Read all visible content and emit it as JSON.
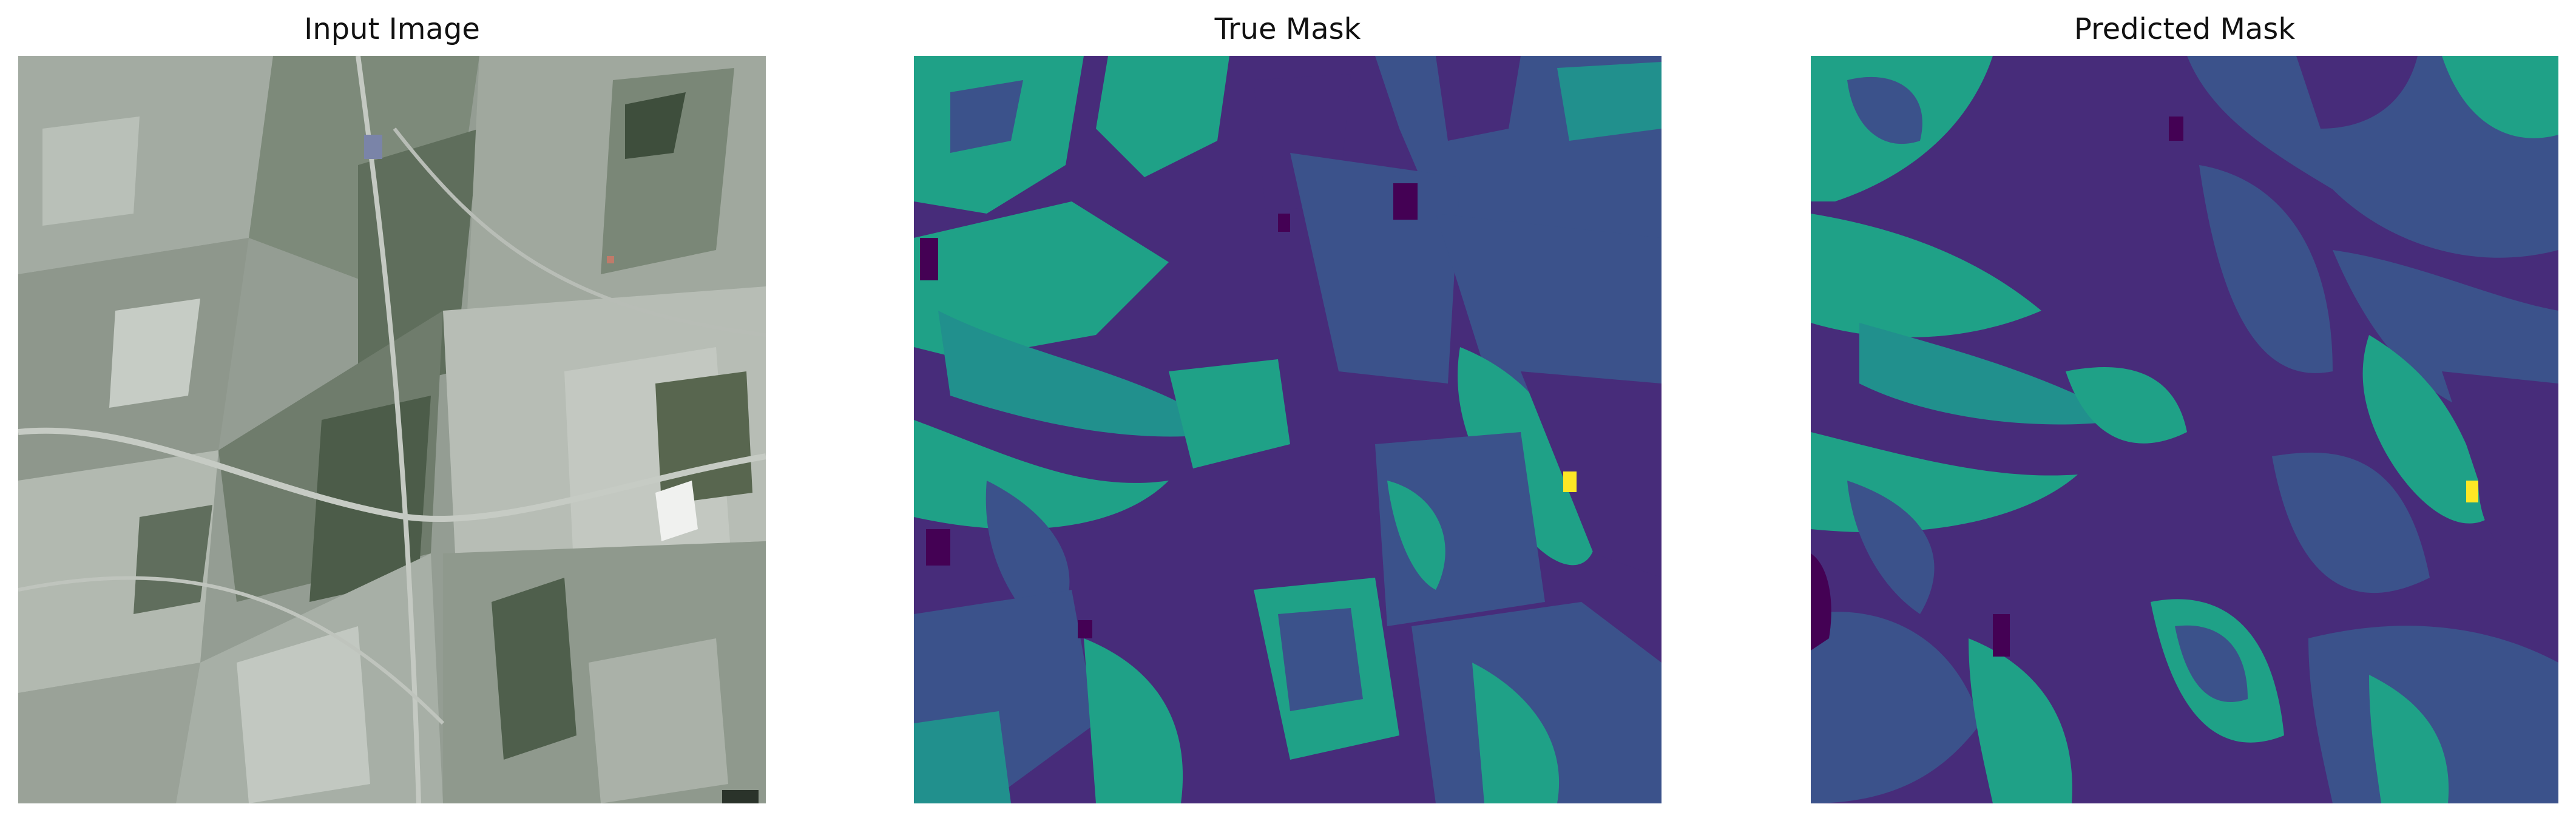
{
  "figure": {
    "panels": [
      {
        "title": "Input Image"
      },
      {
        "title": "True Mask"
      },
      {
        "title": "Predicted Mask"
      }
    ]
  },
  "palette": {
    "mask_classes": [
      "#440154",
      "#472c7a",
      "#3b528b",
      "#21908d",
      "#1fa187",
      "#fde725"
    ],
    "satellite": [
      "#8d968d",
      "#a4aca3",
      "#b8bfb7",
      "#6b7868",
      "#4a5a47",
      "#c9cec8",
      "#dfe2de"
    ]
  }
}
